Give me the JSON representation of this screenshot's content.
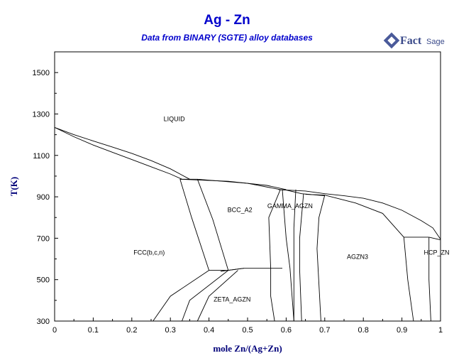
{
  "chart_data": {
    "type": "phase-diagram",
    "title": "Ag - Zn",
    "subtitle": "Data from BINARY (SGTE) alloy databases",
    "xlabel": "mole Zn/(Ag+Zn)",
    "ylabel": "T(K)",
    "xlim": [
      0,
      1
    ],
    "ylim": [
      300,
      1600
    ],
    "xticks": [
      0,
      0.1,
      0.2,
      0.3,
      0.4,
      0.5,
      0.6,
      0.7,
      0.8,
      0.9,
      1
    ],
    "xtick_labels": [
      "0",
      "0.1",
      "0.2",
      "0.3",
      "0.4",
      "0.5",
      "0.6",
      "0.7",
      "0.8",
      "0.9",
      "1"
    ],
    "yticks": [
      300,
      500,
      700,
      900,
      1100,
      1300,
      1500
    ],
    "ytick_labels": [
      "300",
      "500",
      "700",
      "900",
      "1100",
      "1300",
      "1500"
    ],
    "grid": false,
    "regions": [
      {
        "label": "LIQUID",
        "x": 0.31,
        "y": 1265
      },
      {
        "label": "BCC_A2",
        "x": 0.48,
        "y": 827
      },
      {
        "label": "GAMMA_AGZN",
        "x": 0.61,
        "y": 845
      },
      {
        "label": "FCC(b,c,n)",
        "x": 0.245,
        "y": 620
      },
      {
        "label": "ZETA_AGZN",
        "x": 0.46,
        "y": 395
      },
      {
        "label": "AGZN3",
        "x": 0.785,
        "y": 600
      },
      {
        "label": "HCP_ZN",
        "x": 0.99,
        "y": 620
      }
    ],
    "curves": [
      {
        "points": [
          [
            0,
            1235
          ],
          [
            0.05,
            1190
          ],
          [
            0.1,
            1150
          ],
          [
            0.15,
            1115
          ],
          [
            0.2,
            1080
          ],
          [
            0.25,
            1045
          ],
          [
            0.3,
            1010
          ],
          [
            0.33,
            985
          ]
        ]
      },
      {
        "points": [
          [
            0,
            1235
          ],
          [
            0.05,
            1200
          ],
          [
            0.1,
            1170
          ],
          [
            0.15,
            1140
          ],
          [
            0.2,
            1110
          ],
          [
            0.25,
            1075
          ],
          [
            0.3,
            1035
          ],
          [
            0.35,
            985
          ]
        ]
      },
      {
        "points": [
          [
            0.325,
            985
          ],
          [
            0.37,
            985
          ],
          [
            0.5,
            965
          ],
          [
            0.585,
            935
          ]
        ]
      },
      {
        "points": [
          [
            0.325,
            985
          ],
          [
            0.45,
            975
          ],
          [
            0.55,
            955
          ],
          [
            0.6,
            935
          ]
        ]
      },
      {
        "points": [
          [
            0.58,
            935
          ],
          [
            0.6,
            933
          ],
          [
            0.64,
            915
          ],
          [
            0.7,
            905
          ]
        ]
      },
      {
        "points": [
          [
            0.58,
            935
          ],
          [
            0.65,
            928
          ],
          [
            0.7,
            915
          ],
          [
            0.75,
            905
          ],
          [
            0.8,
            893
          ],
          [
            0.85,
            870
          ],
          [
            0.9,
            835
          ],
          [
            0.95,
            785
          ],
          [
            0.98,
            750
          ],
          [
            1,
            695
          ]
        ]
      },
      {
        "points": [
          [
            0.65,
            912
          ],
          [
            0.7,
            908
          ],
          [
            0.78,
            870
          ],
          [
            0.85,
            820
          ],
          [
            0.905,
            705
          ]
        ]
      },
      {
        "points": [
          [
            0.905,
            705
          ],
          [
            0.95,
            705
          ],
          [
            0.97,
            705
          ]
        ]
      },
      {
        "points": [
          [
            0.97,
            705
          ],
          [
            1,
            692
          ]
        ]
      },
      {
        "points": [
          [
            0.325,
            985
          ],
          [
            0.355,
            800
          ],
          [
            0.4,
            545
          ]
        ]
      },
      {
        "points": [
          [
            0.37,
            985
          ],
          [
            0.41,
            790
          ],
          [
            0.45,
            545
          ]
        ]
      },
      {
        "points": [
          [
            0.4,
            545
          ],
          [
            0.45,
            545
          ]
        ]
      },
      {
        "points": [
          [
            0.45,
            545
          ],
          [
            0.49,
            555
          ],
          [
            0.59,
            555
          ]
        ]
      },
      {
        "points": [
          [
            0.43,
            540
          ],
          [
            0.49,
            555
          ]
        ]
      },
      {
        "points": [
          [
            0.585,
            935
          ],
          [
            0.555,
            800
          ],
          [
            0.56,
            555
          ]
        ]
      },
      {
        "points": [
          [
            0.56,
            555
          ],
          [
            0.56,
            420
          ],
          [
            0.57,
            300
          ]
        ]
      },
      {
        "points": [
          [
            0.59,
            935
          ],
          [
            0.6,
            700
          ],
          [
            0.61,
            555
          ],
          [
            0.62,
            300
          ]
        ]
      },
      {
        "points": [
          [
            0.625,
            935
          ],
          [
            0.62,
            750
          ],
          [
            0.62,
            600
          ],
          [
            0.62,
            300
          ]
        ]
      },
      {
        "points": [
          [
            0.645,
            915
          ],
          [
            0.635,
            700
          ],
          [
            0.635,
            550
          ],
          [
            0.64,
            300
          ]
        ]
      },
      {
        "points": [
          [
            0.7,
            908
          ],
          [
            0.685,
            800
          ],
          [
            0.68,
            650
          ],
          [
            0.69,
            300
          ]
        ]
      },
      {
        "points": [
          [
            0.905,
            705
          ],
          [
            0.915,
            500
          ],
          [
            0.93,
            300
          ]
        ]
      },
      {
        "points": [
          [
            0.97,
            705
          ],
          [
            0.97,
            500
          ],
          [
            0.975,
            300
          ]
        ]
      },
      {
        "points": [
          [
            0.4,
            545
          ],
          [
            0.3,
            420
          ],
          [
            0.255,
            300
          ]
        ]
      },
      {
        "points": [
          [
            0.45,
            545
          ],
          [
            0.35,
            400
          ],
          [
            0.33,
            300
          ]
        ]
      },
      {
        "points": [
          [
            0.475,
            545
          ],
          [
            0.4,
            420
          ],
          [
            0.37,
            300
          ]
        ]
      }
    ]
  }
}
